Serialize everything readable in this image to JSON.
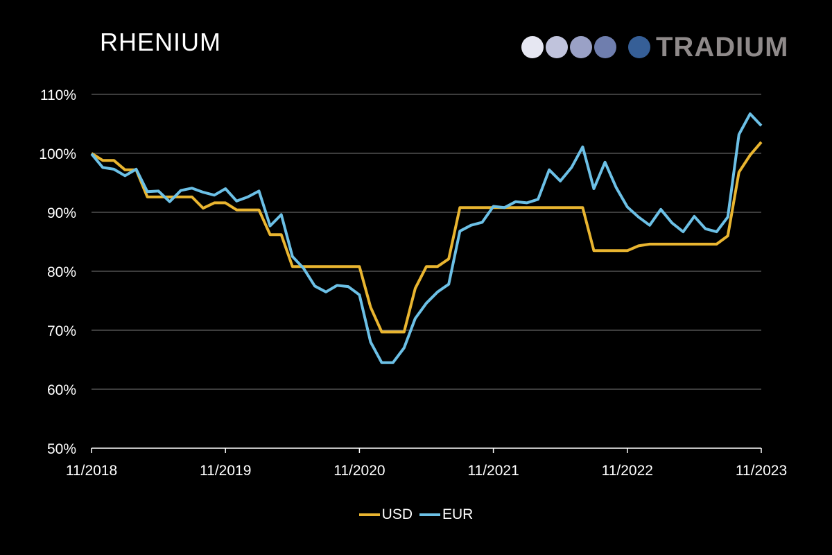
{
  "header": {
    "title": "RHENIUM"
  },
  "logo": {
    "text": "TRADIUM",
    "dot_colors": [
      "#e6e7f2",
      "#c0c3dc",
      "#9aa1c6",
      "#6f7eae",
      "#365f97"
    ]
  },
  "chart_data": {
    "type": "line",
    "title": "RHENIUM",
    "xlabel": "",
    "ylabel": "",
    "ylim": [
      50,
      110
    ],
    "yticks": [
      50,
      60,
      70,
      80,
      90,
      100,
      110
    ],
    "ytick_labels": [
      "50%",
      "60%",
      "70%",
      "80%",
      "90%",
      "100%",
      "110%"
    ],
    "xticks": [
      "11/2018",
      "11/2019",
      "11/2020",
      "11/2021",
      "11/2022",
      "11/2023"
    ],
    "x_unit": "monthly, 11/2018 to 11/2023",
    "grid": true,
    "legend_position": "bottom-center",
    "series": [
      {
        "name": "USD",
        "color": "#e9b530",
        "values": [
          100,
          98.8,
          98.8,
          97.2,
          97.2,
          92.6,
          92.6,
          92.6,
          92.6,
          92.6,
          90.7,
          91.6,
          91.6,
          90.4,
          90.4,
          90.4,
          86.2,
          86.2,
          80.8,
          80.8,
          80.8,
          80.8,
          80.8,
          80.8,
          80.8,
          73.9,
          69.7,
          69.7,
          69.7,
          77.1,
          80.8,
          80.8,
          82.1,
          90.8,
          90.8,
          90.8,
          90.8,
          90.8,
          90.8,
          90.8,
          90.8,
          90.8,
          90.8,
          90.8,
          90.8,
          83.5,
          83.5,
          83.5,
          83.5,
          84.3,
          84.6,
          84.6,
          84.6,
          84.6,
          84.6,
          84.6,
          84.6,
          86.0,
          96.8,
          99.7,
          101.9
        ]
      },
      {
        "name": "EUR",
        "color": "#6cc0e6",
        "values": [
          99.9,
          97.6,
          97.3,
          96.2,
          97.3,
          93.5,
          93.6,
          91.8,
          93.7,
          94.1,
          93.4,
          92.9,
          94.0,
          91.9,
          92.6,
          93.6,
          87.7,
          89.6,
          82.5,
          80.5,
          77.5,
          76.5,
          77.6,
          77.4,
          76.0,
          68.0,
          64.5,
          64.5,
          67.0,
          72.0,
          74.6,
          76.5,
          77.8,
          86.8,
          87.8,
          88.3,
          91.0,
          90.8,
          91.8,
          91.6,
          92.2,
          97.2,
          95.3,
          97.6,
          101.1,
          94.0,
          98.5,
          94.2,
          90.9,
          89.2,
          87.8,
          90.5,
          88.2,
          86.7,
          89.3,
          87.2,
          86.7,
          89.2,
          103.2,
          106.7,
          104.7
        ]
      }
    ]
  }
}
